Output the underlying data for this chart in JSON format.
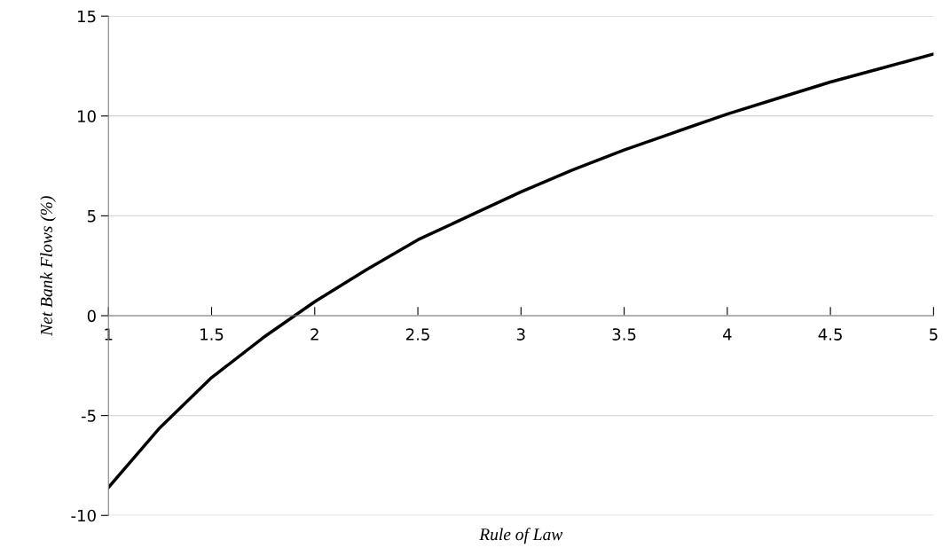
{
  "chart_data": {
    "type": "line",
    "xlabel": "Rule of Law",
    "ylabel": "Net Bank Flows (%)",
    "x": [
      1,
      1.25,
      1.5,
      1.75,
      2,
      2.25,
      2.5,
      2.75,
      3,
      3.25,
      3.5,
      3.75,
      4,
      4.25,
      4.5,
      4.75,
      5
    ],
    "series": [
      {
        "color": "#000000",
        "values": [
          -8.6,
          -5.6,
          -3.1,
          -1.1,
          0.7,
          2.3,
          3.8,
          5.0,
          6.2,
          7.3,
          8.3,
          9.2,
          10.1,
          10.9,
          11.7,
          12.4,
          13.1
        ]
      }
    ],
    "xlim": [
      1,
      5
    ],
    "xticks": [
      1,
      1.5,
      2,
      2.5,
      3,
      3.5,
      4,
      4.5,
      5
    ],
    "ylim": [
      -10,
      15
    ],
    "yticks": [
      -10,
      -5,
      0,
      5,
      10,
      15
    ],
    "grid": "y",
    "marker": "none",
    "line_style": "solid",
    "legend": false
  }
}
